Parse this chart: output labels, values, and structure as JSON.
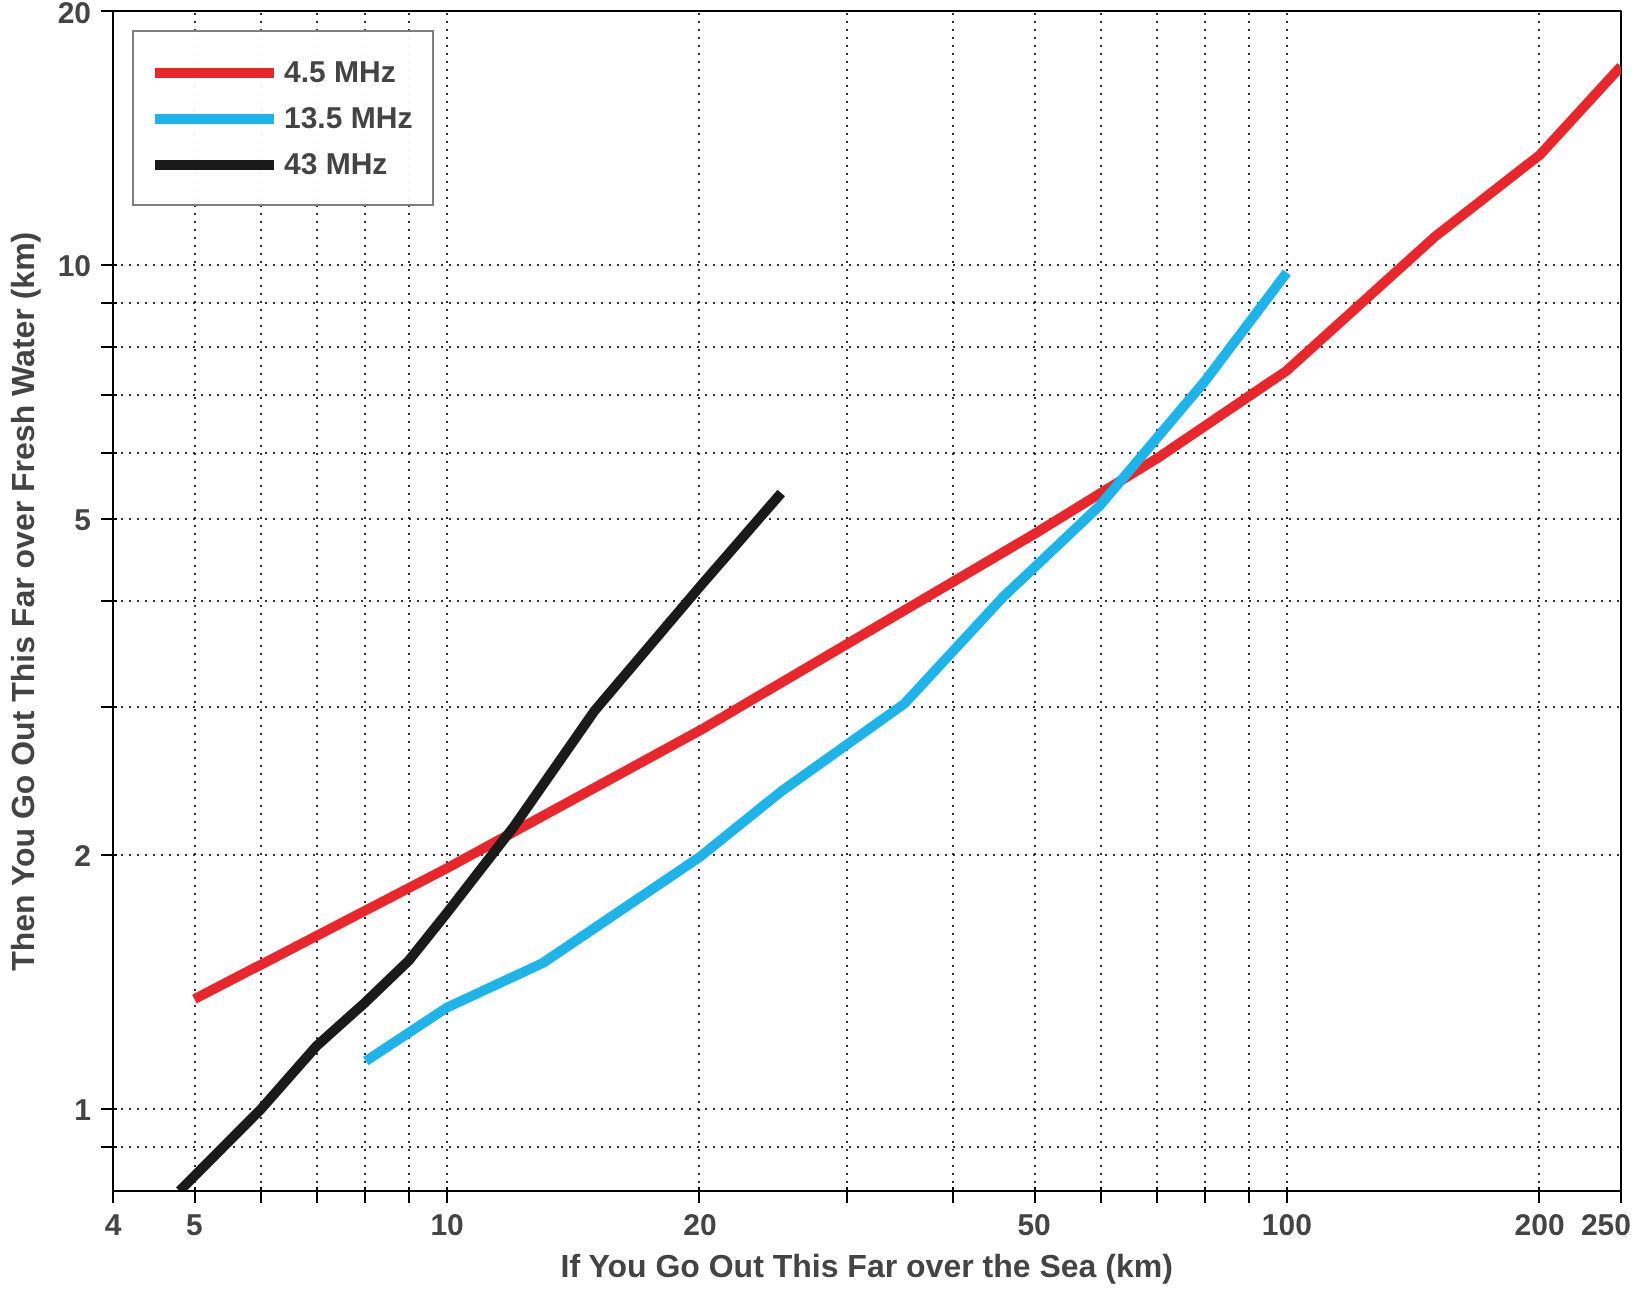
{
  "chart_data": {
    "type": "line",
    "xlabel": "If You Go Out This Far over the Sea (km)",
    "ylabel": "Then You Go Out This Far over Fresh Water (km)",
    "log": "xy",
    "xlim": [
      4,
      250
    ],
    "ylim": [
      0.8,
      20
    ],
    "xticks": [
      4,
      5,
      {
        "value": 6,
        "label": null
      },
      {
        "value": 7,
        "label": null
      },
      {
        "value": 8,
        "label": null
      },
      {
        "value": 9,
        "label": null
      },
      10,
      20,
      {
        "value": 30,
        "label": null
      },
      {
        "value": 40,
        "label": null
      },
      50,
      {
        "value": 60,
        "label": null
      },
      {
        "value": 70,
        "label": null
      },
      {
        "value": 80,
        "label": null
      },
      {
        "value": 90,
        "label": null
      },
      100,
      200,
      250
    ],
    "yticks": [
      {
        "value": 0.9,
        "label": null
      },
      1,
      2,
      {
        "value": 3,
        "label": null
      },
      {
        "value": 4,
        "label": null
      },
      5,
      {
        "value": 6,
        "label": null
      },
      {
        "value": 7,
        "label": null
      },
      {
        "value": 8,
        "label": null
      },
      {
        "value": 9,
        "label": null
      },
      10,
      20
    ],
    "grid": true,
    "legend": "top left",
    "line_style": "solid",
    "series": [
      {
        "name": "4.5 MHz",
        "color": "#e8262b",
        "x": [
          5,
          10,
          20,
          50,
          70,
          100,
          150,
          200,
          250
        ],
        "values": [
          1.35,
          1.93,
          2.81,
          4.8,
          5.9,
          7.5,
          10.8,
          13.5,
          17.2
        ]
      },
      {
        "name": "13.5 MHz",
        "color": "#1eb4ea",
        "x": [
          8,
          10,
          13,
          20,
          25,
          35,
          46,
          60,
          80,
          100
        ],
        "values": [
          1.14,
          1.32,
          1.49,
          1.99,
          2.38,
          3.02,
          4.05,
          5.2,
          7.3,
          9.8
        ]
      },
      {
        "name": "43 MHz",
        "color": "#1a1a1a",
        "x": [
          4.8,
          6,
          7,
          8,
          9,
          10,
          12,
          15,
          20,
          25
        ],
        "values": [
          0.8,
          1.0,
          1.19,
          1.34,
          1.5,
          1.71,
          2.16,
          2.97,
          4.16,
          5.37
        ]
      }
    ]
  }
}
